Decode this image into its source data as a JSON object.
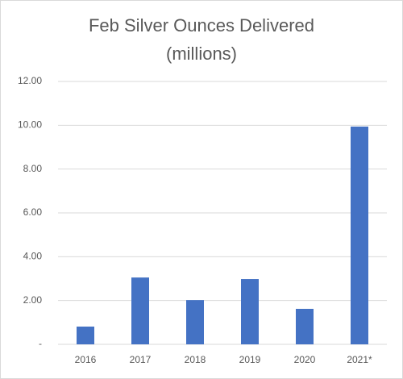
{
  "chart_data": {
    "type": "bar",
    "title": "Feb Silver Ounces Delivered",
    "subtitle": "(millions)",
    "categories": [
      "2016",
      "2017",
      "2018",
      "2019",
      "2020",
      "2021*"
    ],
    "values": [
      0.81,
      3.05,
      2.02,
      2.98,
      1.62,
      9.94
    ],
    "color": "#4472c4",
    "ylim": [
      0,
      12
    ],
    "yticks": [
      {
        "value": 0,
        "label": "-"
      },
      {
        "value": 2,
        "label": "2.00"
      },
      {
        "value": 4,
        "label": "4.00"
      },
      {
        "value": 6,
        "label": "6.00"
      },
      {
        "value": 8,
        "label": "8.00"
      },
      {
        "value": 10,
        "label": "10.00"
      },
      {
        "value": 12,
        "label": "12.00"
      }
    ],
    "grid": true
  }
}
